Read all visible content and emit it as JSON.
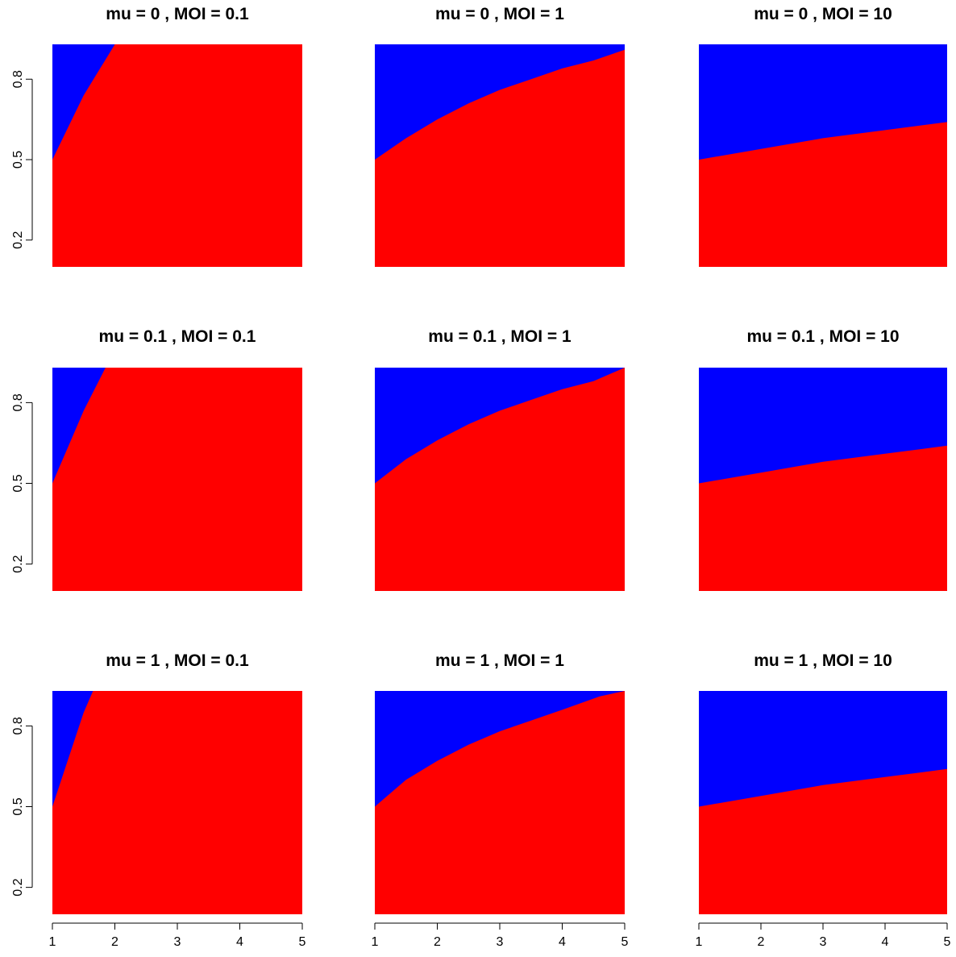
{
  "chart_data": [
    {
      "type": "area",
      "title": "mu =  0 ,  MOI =  0.1",
      "x": [
        1,
        1.5,
        2,
        3,
        4,
        5
      ],
      "values": [
        0.5,
        0.74,
        0.93,
        0.93,
        0.93,
        0.93
      ],
      "xlim": [
        1,
        5
      ],
      "ylim": [
        0.1,
        0.93
      ],
      "yticks": [
        0.2,
        0.5,
        0.8
      ],
      "xticks": [],
      "show_y_axis": true,
      "show_x_axis": false,
      "fill_below": "#ff0000",
      "fill_above": "#0000ff"
    },
    {
      "type": "area",
      "title": "mu =  0 ,  MOI =  1",
      "x": [
        1,
        1.5,
        2,
        2.5,
        3,
        3.5,
        4,
        4.5,
        5
      ],
      "values": [
        0.5,
        0.58,
        0.65,
        0.71,
        0.76,
        0.8,
        0.84,
        0.87,
        0.91
      ],
      "xlim": [
        1,
        5
      ],
      "ylim": [
        0.1,
        0.93
      ],
      "yticks": [],
      "xticks": [],
      "show_y_axis": false,
      "show_x_axis": false,
      "fill_below": "#ff0000",
      "fill_above": "#0000ff"
    },
    {
      "type": "area",
      "title": "mu =  0 ,  MOI =  10",
      "x": [
        1,
        2,
        3,
        4,
        5
      ],
      "values": [
        0.5,
        0.54,
        0.58,
        0.61,
        0.64
      ],
      "xlim": [
        1,
        5
      ],
      "ylim": [
        0.1,
        0.93
      ],
      "yticks": [],
      "xticks": [],
      "show_y_axis": false,
      "show_x_axis": false,
      "fill_below": "#ff0000",
      "fill_above": "#0000ff"
    },
    {
      "type": "area",
      "title": "mu =  0.1 ,  MOI =  0.1",
      "x": [
        1,
        1.5,
        1.85,
        3,
        4,
        5
      ],
      "values": [
        0.5,
        0.77,
        0.93,
        0.93,
        0.93,
        0.93
      ],
      "xlim": [
        1,
        5
      ],
      "ylim": [
        0.1,
        0.93
      ],
      "yticks": [
        0.2,
        0.5,
        0.8
      ],
      "xticks": [],
      "show_y_axis": true,
      "show_x_axis": false,
      "fill_below": "#ff0000",
      "fill_above": "#0000ff"
    },
    {
      "type": "area",
      "title": "mu =  0.1 ,  MOI =  1",
      "x": [
        1,
        1.5,
        2,
        2.5,
        3,
        3.5,
        4,
        4.5,
        5
      ],
      "values": [
        0.5,
        0.59,
        0.66,
        0.72,
        0.77,
        0.81,
        0.85,
        0.88,
        0.93
      ],
      "xlim": [
        1,
        5
      ],
      "ylim": [
        0.1,
        0.93
      ],
      "yticks": [],
      "xticks": [],
      "show_y_axis": false,
      "show_x_axis": false,
      "fill_below": "#ff0000",
      "fill_above": "#0000ff"
    },
    {
      "type": "area",
      "title": "mu =  0.1 ,  MOI =  10",
      "x": [
        1,
        2,
        3,
        4,
        5
      ],
      "values": [
        0.5,
        0.54,
        0.58,
        0.61,
        0.64
      ],
      "xlim": [
        1,
        5
      ],
      "ylim": [
        0.1,
        0.93
      ],
      "yticks": [],
      "xticks": [],
      "show_y_axis": false,
      "show_x_axis": false,
      "fill_below": "#ff0000",
      "fill_above": "#0000ff"
    },
    {
      "type": "area",
      "title": "mu =  1 ,  MOI =  0.1",
      "x": [
        1,
        1.5,
        1.65,
        3,
        4,
        5
      ],
      "values": [
        0.5,
        0.85,
        0.93,
        0.93,
        0.93,
        0.93
      ],
      "xlim": [
        1,
        5
      ],
      "ylim": [
        0.1,
        0.93
      ],
      "yticks": [
        0.2,
        0.5,
        0.8
      ],
      "xticks": [],
      "show_y_axis": true,
      "show_x_axis": false,
      "fill_below": "#ff0000",
      "fill_above": "#0000ff"
    },
    {
      "type": "area",
      "title": "mu =  1 ,  MOI =  1",
      "x": [
        1,
        1.5,
        2,
        2.5,
        3,
        3.5,
        4,
        4.6,
        5
      ],
      "values": [
        0.5,
        0.6,
        0.67,
        0.73,
        0.78,
        0.82,
        0.86,
        0.91,
        0.93
      ],
      "xlim": [
        1,
        5
      ],
      "ylim": [
        0.1,
        0.93
      ],
      "yticks": [],
      "xticks": [],
      "show_y_axis": false,
      "show_x_axis": false,
      "fill_below": "#ff0000",
      "fill_above": "#0000ff"
    },
    {
      "type": "area",
      "title": "mu =  1 ,  MOI =  10",
      "x": [
        1,
        2,
        3,
        4,
        5
      ],
      "values": [
        0.5,
        0.54,
        0.58,
        0.61,
        0.64
      ],
      "xlim": [
        1,
        5
      ],
      "ylim": [
        0.1,
        0.93
      ],
      "yticks": [],
      "xticks": [],
      "show_y_axis": false,
      "show_x_axis": false,
      "fill_below": "#ff0000",
      "fill_above": "#0000ff"
    }
  ],
  "bottom_x_ticks": [
    1,
    2,
    3,
    4,
    5
  ],
  "colors": {
    "below": "#ff0000",
    "above": "#0000ff",
    "axis": "#000000"
  }
}
